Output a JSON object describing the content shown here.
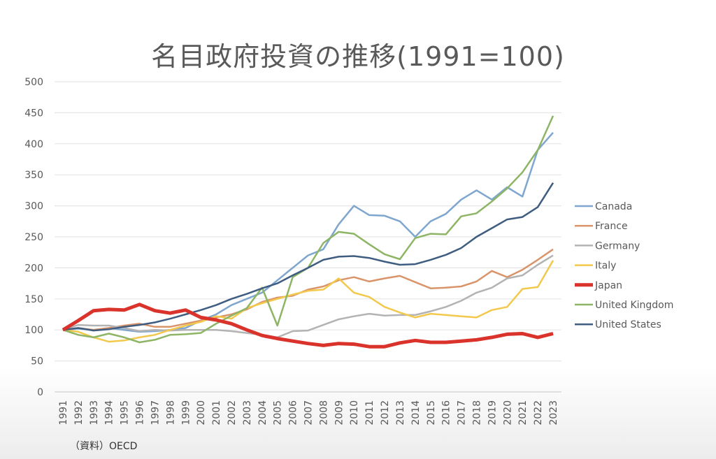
{
  "chart_data": {
    "type": "line",
    "title": "名目政府投資の推移(1991=100)",
    "xlabel": "",
    "ylabel": "",
    "ylim": [
      0,
      500
    ],
    "yticks": [
      0,
      50,
      100,
      150,
      200,
      250,
      300,
      350,
      400,
      450,
      500
    ],
    "grid": true,
    "legend_position": "right",
    "x": [
      1991,
      1992,
      1993,
      1994,
      1995,
      1996,
      1997,
      1998,
      1999,
      2000,
      2001,
      2002,
      2003,
      2004,
      2005,
      2006,
      2007,
      2008,
      2009,
      2010,
      2011,
      2012,
      2013,
      2014,
      2015,
      2016,
      2017,
      2018,
      2019,
      2020,
      2021,
      2022,
      2023
    ],
    "series": [
      {
        "name": "Canada",
        "color": "#7ea6cf",
        "width": 2.5,
        "values": [
          100,
          102,
          100,
          103,
          100,
          97,
          98,
          100,
          103,
          115,
          125,
          140,
          150,
          160,
          180,
          200,
          220,
          230,
          270,
          300,
          285,
          284,
          275,
          250,
          275,
          287,
          310,
          325,
          310,
          330,
          315,
          390,
          418
        ]
      },
      {
        "name": "France",
        "color": "#d9946a",
        "width": 2.5,
        "values": [
          100,
          103,
          100,
          103,
          107,
          110,
          105,
          105,
          110,
          115,
          120,
          125,
          133,
          145,
          152,
          155,
          165,
          170,
          180,
          185,
          178,
          183,
          187,
          177,
          167,
          168,
          170,
          178,
          195,
          185,
          197,
          213,
          230
        ]
      },
      {
        "name": "Germany",
        "color": "#b3b3b3",
        "width": 2.5,
        "values": [
          100,
          108,
          107,
          107,
          103,
          98,
          100,
          99,
          100,
          100,
          100,
          98,
          95,
          92,
          88,
          98,
          99,
          108,
          117,
          122,
          126,
          123,
          124,
          124,
          130,
          137,
          147,
          160,
          168,
          183,
          188,
          205,
          220
        ]
      },
      {
        "name": "Italy",
        "color": "#f2c94c",
        "width": 2.5,
        "values": [
          100,
          97,
          88,
          81,
          83,
          88,
          92,
          100,
          107,
          113,
          122,
          118,
          135,
          143,
          150,
          157,
          163,
          165,
          183,
          160,
          153,
          137,
          128,
          120,
          126,
          124,
          122,
          120,
          132,
          137,
          166,
          169,
          212
        ]
      },
      {
        "name": "Japan",
        "color": "#d9332b",
        "width": 5,
        "values": [
          100,
          115,
          131,
          133,
          132,
          141,
          131,
          127,
          132,
          120,
          116,
          110,
          100,
          91,
          86,
          82,
          78,
          75,
          78,
          77,
          73,
          73,
          79,
          83,
          80,
          80,
          82,
          84,
          88,
          93,
          94,
          88,
          94
        ]
      },
      {
        "name": "United Kingdom",
        "color": "#8db565",
        "width": 2.5,
        "values": [
          100,
          92,
          88,
          94,
          88,
          80,
          84,
          92,
          93,
          95,
          110,
          123,
          135,
          168,
          107,
          185,
          200,
          240,
          258,
          255,
          238,
          222,
          214,
          248,
          255,
          254,
          283,
          288,
          307,
          328,
          354,
          390,
          445
        ]
      },
      {
        "name": "United States",
        "color": "#3f5d80",
        "width": 2.5,
        "values": [
          100,
          103,
          99,
          101,
          105,
          108,
          112,
          118,
          125,
          132,
          140,
          150,
          158,
          167,
          175,
          188,
          200,
          213,
          218,
          219,
          216,
          210,
          205,
          206,
          213,
          221,
          232,
          250,
          264,
          278,
          282,
          298,
          337
        ]
      }
    ]
  },
  "source": "（資料）OECD"
}
